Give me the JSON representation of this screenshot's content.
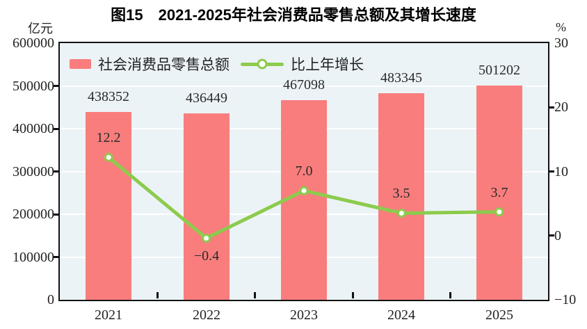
{
  "title": "图15　2021-2025年社会消费品零售总额及其增长速度",
  "left_axis": {
    "unit": "亿元",
    "tick_values": [
      600000,
      500000,
      400000,
      300000,
      200000,
      100000,
      0
    ],
    "tick_labels": [
      "600000",
      "500000",
      "400000",
      "300000",
      "200000",
      "100000",
      "0"
    ]
  },
  "right_axis": {
    "unit": "%",
    "tick_values": [
      30,
      20,
      10,
      0,
      -10
    ],
    "tick_labels": [
      "30",
      "20",
      "10",
      "0",
      "−10"
    ]
  },
  "chart_data": {
    "type": "bar+line",
    "title": "图15　2021-2025年社会消费品零售总额及其增长速度",
    "categories": [
      "2021",
      "2022",
      "2023",
      "2024",
      "2025"
    ],
    "series": [
      {
        "name": "社会消费品零售总额",
        "type": "bar",
        "axis": "left",
        "color": "#f97d7d",
        "values": [
          438352,
          436449,
          467098,
          483345,
          501202
        ],
        "value_labels": [
          "438352",
          "436449",
          "467098",
          "483345",
          "501202"
        ]
      },
      {
        "name": "比上年增长",
        "type": "line",
        "axis": "right",
        "color": "#8ccb4d",
        "values": [
          12.2,
          -0.4,
          7.0,
          3.5,
          3.7
        ],
        "point_labels": [
          "12.2",
          "−0.4",
          "7.0",
          "3.5",
          "3.7"
        ]
      }
    ],
    "left_ylim": [
      0,
      600000
    ],
    "right_ylim": [
      -10,
      30
    ],
    "grid": true,
    "legend_position": "top-left"
  },
  "colors": {
    "plot_bg": "#ecf3f7",
    "grid": "#ffffff",
    "axis": "#111111",
    "text": "#222222",
    "bar": "#f97d7d",
    "line": "#8ccb4d"
  }
}
